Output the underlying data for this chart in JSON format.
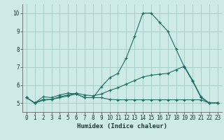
{
  "xlabel": "Humidex (Indice chaleur)",
  "xlim": [
    -0.5,
    23.5
  ],
  "ylim": [
    4.5,
    10.5
  ],
  "yticks": [
    5,
    6,
    7,
    8,
    9,
    10
  ],
  "xticks": [
    0,
    1,
    2,
    3,
    4,
    5,
    6,
    7,
    8,
    9,
    10,
    11,
    12,
    13,
    14,
    15,
    16,
    17,
    18,
    19,
    20,
    21,
    22,
    23
  ],
  "bg_color": "#ceeae6",
  "grid_color": "#a8cfc9",
  "line_color": "#1a6e62",
  "line1_x": [
    0,
    1,
    2,
    3,
    4,
    5,
    6,
    7,
    8,
    9,
    10,
    11,
    12,
    13,
    14,
    15,
    16,
    17,
    18,
    19,
    20,
    21,
    22,
    23
  ],
  "line1_y": [
    5.3,
    5.0,
    5.35,
    5.3,
    5.45,
    5.55,
    5.5,
    5.3,
    5.3,
    5.9,
    6.4,
    6.65,
    7.5,
    8.7,
    10.0,
    10.0,
    9.5,
    9.0,
    8.0,
    7.0,
    6.2,
    5.3,
    5.0,
    5.0
  ],
  "line2_x": [
    0,
    1,
    2,
    3,
    4,
    5,
    6,
    7,
    8,
    9,
    10,
    11,
    12,
    13,
    14,
    15,
    16,
    17,
    18,
    19,
    20,
    21,
    22,
    23
  ],
  "line2_y": [
    5.3,
    5.0,
    5.2,
    5.2,
    5.35,
    5.45,
    5.55,
    5.45,
    5.4,
    5.5,
    5.7,
    5.85,
    6.05,
    6.25,
    6.45,
    6.55,
    6.6,
    6.65,
    6.85,
    7.05,
    6.25,
    5.35,
    5.0,
    5.0
  ],
  "line3_x": [
    0,
    1,
    2,
    3,
    4,
    5,
    6,
    7,
    8,
    9,
    10,
    11,
    12,
    13,
    14,
    15,
    16,
    17,
    18,
    19,
    20,
    21,
    22,
    23
  ],
  "line3_y": [
    5.3,
    5.0,
    5.15,
    5.2,
    5.3,
    5.4,
    5.5,
    5.3,
    5.3,
    5.3,
    5.2,
    5.18,
    5.18,
    5.18,
    5.18,
    5.18,
    5.18,
    5.18,
    5.18,
    5.18,
    5.18,
    5.18,
    5.0,
    5.0
  ]
}
